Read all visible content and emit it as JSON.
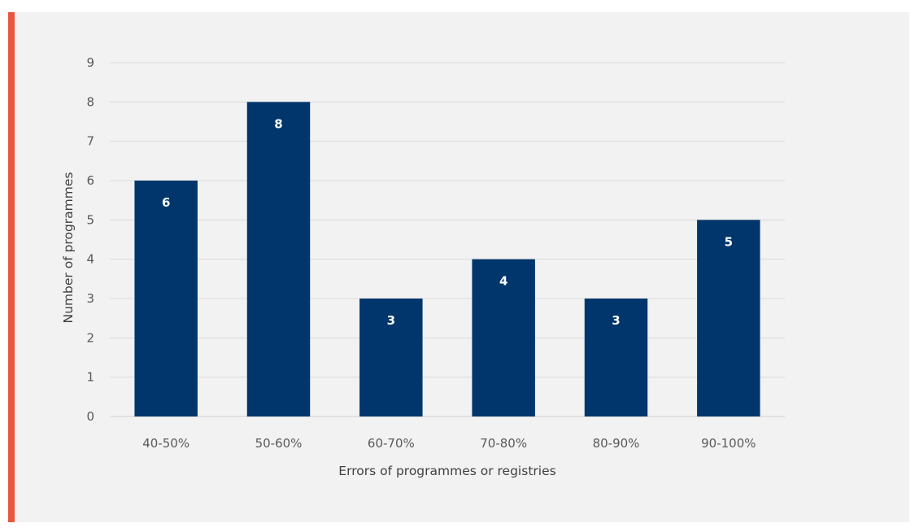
{
  "colors": {
    "accent": "#e8573f",
    "bar": "#00366c",
    "grid": "#d9d9d9",
    "panel": "#f2f2f2"
  },
  "chart_data": {
    "type": "bar",
    "categories": [
      "40-50%",
      "50-60%",
      "60-70%",
      "70-80%",
      "80-90%",
      "90-100%"
    ],
    "values": [
      6,
      8,
      3,
      4,
      3,
      5
    ],
    "data_labels": [
      "6",
      "8",
      "3",
      "4",
      "3",
      "5"
    ],
    "title": "",
    "xlabel": "Errors of programmes or registries",
    "ylabel": "Number of programmes",
    "ylim": [
      0,
      9
    ],
    "yticks": [
      0,
      1,
      2,
      3,
      4,
      5,
      6,
      7,
      8,
      9
    ],
    "grid": true,
    "legend": "none"
  }
}
